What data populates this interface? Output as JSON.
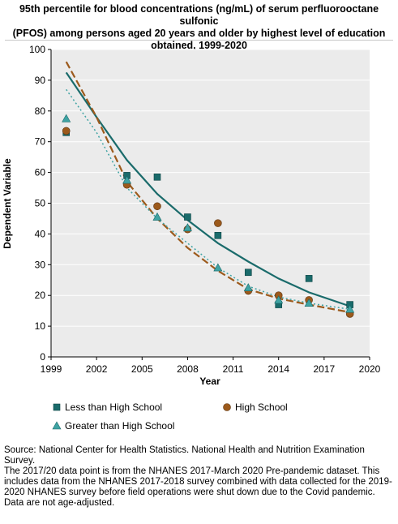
{
  "title_lines": [
    "95th percentile for blood concentrations (ng/mL) of serum perfluorooctane sulfonic",
    "(PFOS) among persons aged 20 years and older by highest level of education",
    "obtained, 1999-2020"
  ],
  "footer": {
    "source": "Source: National Center for Health Statistics. National Health and Nutrition Examination Survey.",
    "note": "The 2017/20 data point is from the NHANES 2017-March 2020 Pre-pandemic dataset. This includes data from the NHANES 2017-2018 survey combined with data collected for the 2019-2020 NHANES survey before field operations were shut down due to the Covid pandemic.",
    "adjust": "Data are not age-adjusted."
  },
  "chart_data": {
    "type": "scatter",
    "xlabel": "Year",
    "ylabel": "Dependent Variable",
    "xlim": [
      1999,
      2020
    ],
    "ylim": [
      0,
      100
    ],
    "xticks": [
      1999,
      2002,
      2005,
      2008,
      2011,
      2014,
      2017,
      2020
    ],
    "yticks": [
      0,
      10,
      20,
      30,
      40,
      50,
      60,
      70,
      80,
      90,
      100
    ],
    "grid": "horizontal",
    "legend_position": "bottom",
    "series": [
      {
        "name": "Less than High School",
        "color": "#1a6b6b",
        "marker": "square",
        "line_style": "solid",
        "points": [
          [
            2000,
            73
          ],
          [
            2004,
            59
          ],
          [
            2006,
            58.5
          ],
          [
            2008,
            45.5
          ],
          [
            2010,
            39.5
          ],
          [
            2012,
            27.5
          ],
          [
            2014,
            17
          ],
          [
            2016,
            25.5
          ],
          [
            2018.7,
            17
          ]
        ],
        "trend": [
          [
            2000,
            92.5
          ],
          [
            2002,
            78
          ],
          [
            2004,
            64
          ],
          [
            2006,
            53
          ],
          [
            2008,
            44.5
          ],
          [
            2010,
            37
          ],
          [
            2012,
            31
          ],
          [
            2014,
            25.5
          ],
          [
            2016,
            21
          ],
          [
            2018.7,
            16.5
          ]
        ]
      },
      {
        "name": "High School",
        "color": "#9c5a1c",
        "marker": "circle",
        "line_style": "dashed",
        "points": [
          [
            2000,
            73.5
          ],
          [
            2004,
            56
          ],
          [
            2006,
            49
          ],
          [
            2008,
            41.5
          ],
          [
            2010,
            43.5
          ],
          [
            2012,
            21.5
          ],
          [
            2014,
            20
          ],
          [
            2016,
            18.5
          ],
          [
            2018.7,
            14
          ]
        ],
        "trend": [
          [
            2000,
            96
          ],
          [
            2002,
            78
          ],
          [
            2004,
            57
          ],
          [
            2006,
            45
          ],
          [
            2008,
            35.5
          ],
          [
            2010,
            28
          ],
          [
            2012,
            22
          ],
          [
            2014,
            19
          ],
          [
            2016,
            17
          ],
          [
            2018.7,
            14.5
          ]
        ]
      },
      {
        "name": "Greater than High School",
        "color": "#3fa3a3",
        "marker": "triangle",
        "line_style": "dotted",
        "points": [
          [
            2000,
            77.5
          ],
          [
            2004,
            57.5
          ],
          [
            2006,
            45.5
          ],
          [
            2008,
            42
          ],
          [
            2010,
            29
          ],
          [
            2012,
            22.5
          ],
          [
            2014,
            18.5
          ],
          [
            2016,
            17.5
          ],
          [
            2018.7,
            15.5
          ]
        ],
        "trend": [
          [
            2000,
            87
          ],
          [
            2002,
            73
          ],
          [
            2004,
            55
          ],
          [
            2006,
            45
          ],
          [
            2008,
            37
          ],
          [
            2010,
            29
          ],
          [
            2012,
            23
          ],
          [
            2014,
            19.5
          ],
          [
            2016,
            17.5
          ],
          [
            2018.7,
            15.5
          ]
        ]
      }
    ]
  }
}
